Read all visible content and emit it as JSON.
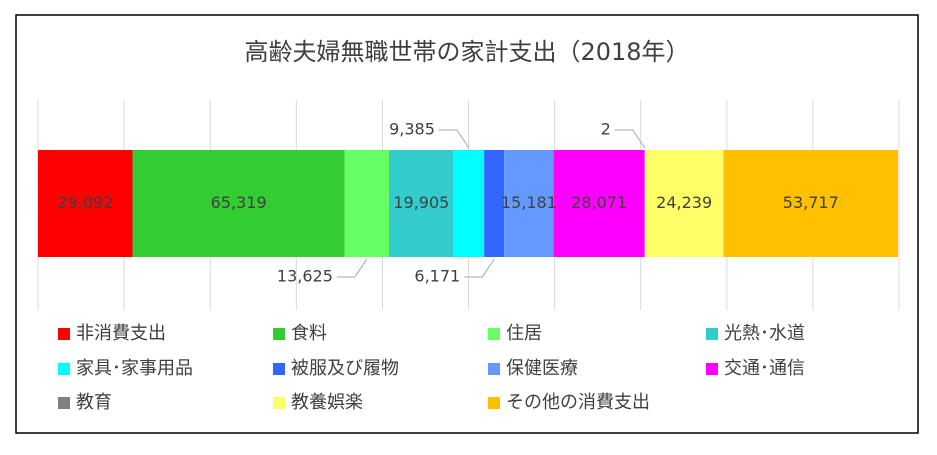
{
  "chart_data": {
    "type": "stacked_bar_horizontal",
    "title": "高齢夫婦無職世帯の家計支出（2018年）",
    "xlim": [
      0,
      265000
    ],
    "xticks": [
      0,
      26500,
      53000,
      79500,
      106000,
      132500,
      159000,
      185500,
      212000,
      238500,
      265000
    ],
    "grid": true,
    "legend": "bottom",
    "series": [
      {
        "name": "非消費支出",
        "color": "#ff0000",
        "values": [
          29092
        ],
        "value_labels": [
          "29,092"
        ]
      },
      {
        "name": "食料",
        "color": "#33cc33",
        "values": [
          65319
        ],
        "value_labels": [
          "65,319"
        ]
      },
      {
        "name": "住居",
        "color": "#66ff66",
        "values": [
          13625
        ],
        "value_labels": [
          "13,625"
        ]
      },
      {
        "name": "光熱･水道",
        "color": "#33cccc",
        "values": [
          19905
        ],
        "value_labels": [
          "19,905"
        ]
      },
      {
        "name": "家具･家事用品",
        "color": "#00ffff",
        "values": [
          9385
        ],
        "value_labels": [
          "9,385"
        ]
      },
      {
        "name": "被服及び履物",
        "color": "#3366ff",
        "values": [
          6171
        ],
        "value_labels": [
          "6,171"
        ]
      },
      {
        "name": "保健医療",
        "color": "#6699ff",
        "values": [
          15181
        ],
        "value_labels": [
          "15,181"
        ]
      },
      {
        "name": "交通･通信",
        "color": "#ff00ff",
        "values": [
          28071
        ],
        "value_labels": [
          "28,071"
        ]
      },
      {
        "name": "教育",
        "color": "#808080",
        "values": [
          2
        ]
      },
      {
        "name": "教養娯楽",
        "color": "#ffff66",
        "values": [
          24239
        ],
        "value_labels": [
          "24,239"
        ]
      },
      {
        "name": "その他の消費支出",
        "color": "#ffc000",
        "values": [
          53717
        ],
        "value_labels": [
          "53,717"
        ]
      }
    ]
  }
}
